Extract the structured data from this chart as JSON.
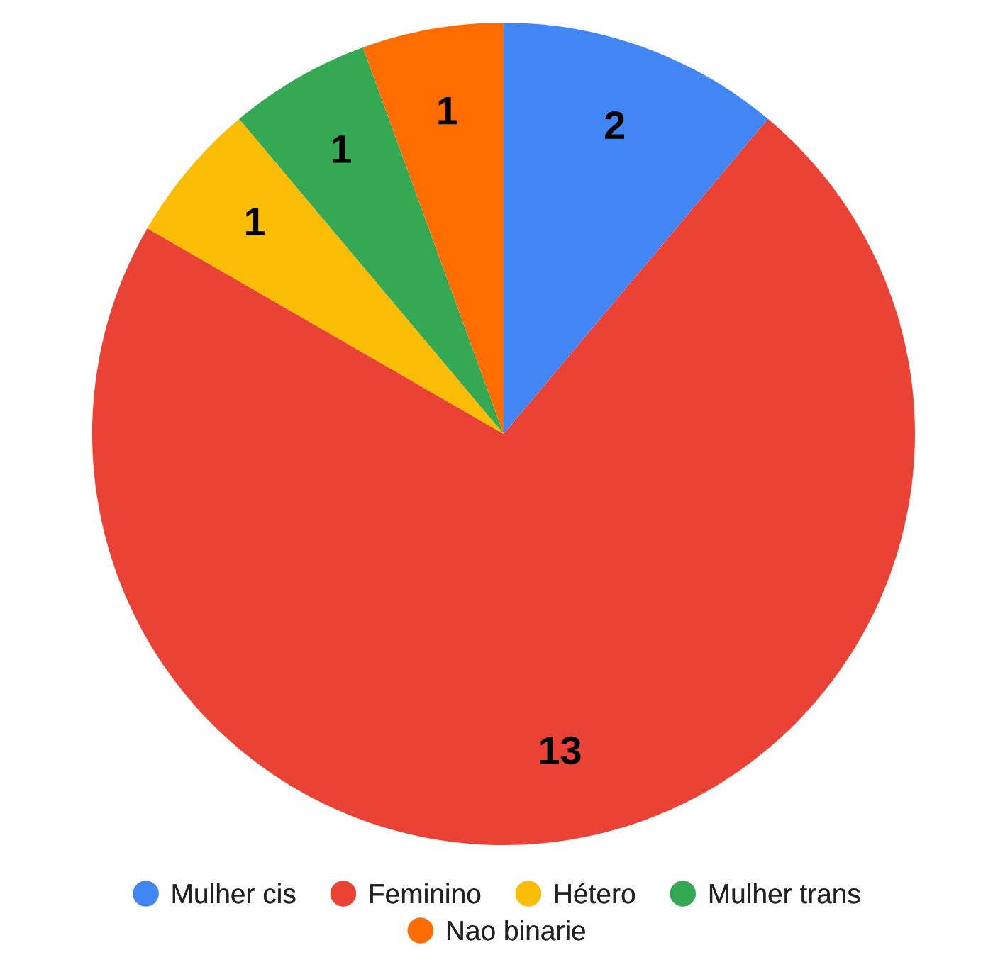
{
  "chart_data": {
    "type": "pie",
    "categories": [
      "Mulher cis",
      "Feminino",
      "Hétero",
      "Mulher trans",
      "Nao binarie"
    ],
    "values": [
      2,
      13,
      1,
      1,
      1
    ],
    "colors": [
      "#4285f4",
      "#ea4335",
      "#fbbc04",
      "#34a853",
      "#ff6d01"
    ],
    "data_labels": true,
    "legend": "bottom"
  }
}
